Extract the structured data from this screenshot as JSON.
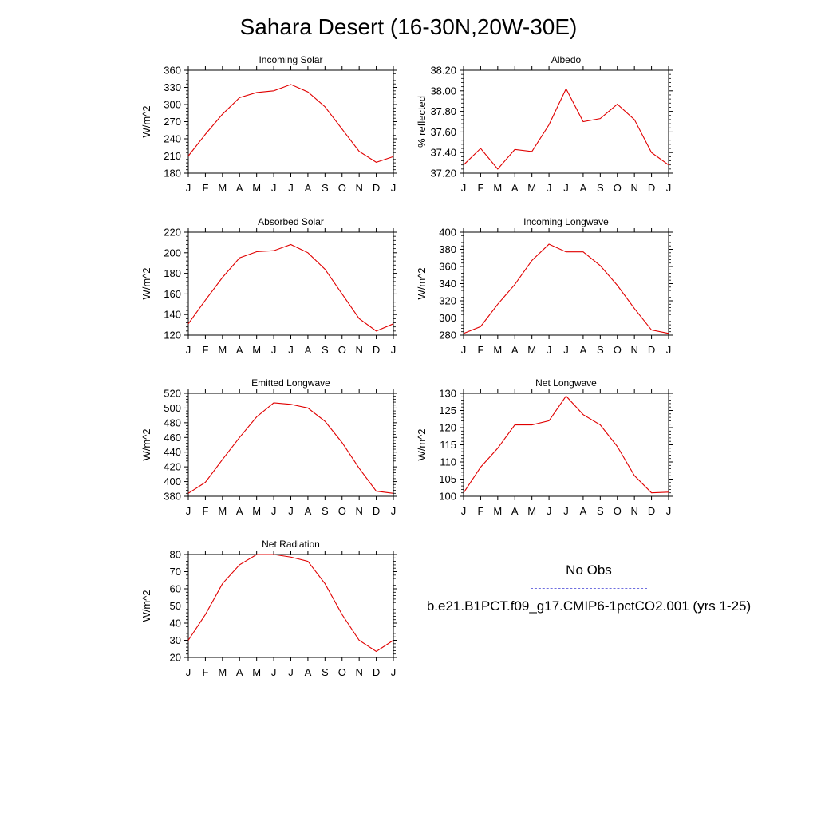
{
  "page": {
    "title": "Sahara Desert (16-30N,20W-30E)"
  },
  "legend": {
    "obs_label": "No Obs",
    "obs_color": "#6f6fe0",
    "model_label": "b.e21.B1PCT.f09_g17.CMIP6-1pctCO2.001 (yrs 1-25)",
    "model_color": "#e00000"
  },
  "chart_data": [
    {
      "type": "line",
      "title": "Incoming Solar",
      "xlabel": "",
      "ylabel": "W/m^2",
      "categories": [
        "J",
        "F",
        "M",
        "A",
        "M",
        "J",
        "J",
        "A",
        "S",
        "O",
        "N",
        "D",
        "J"
      ],
      "ylim": [
        180,
        360
      ],
      "yticks": [
        180,
        210,
        240,
        270,
        300,
        330,
        360
      ],
      "yformat": 0,
      "series": [
        {
          "values": [
            210,
            248,
            283,
            312,
            321,
            324,
            335,
            322,
            296,
            257,
            218,
            199,
            209
          ],
          "color": "#e00000"
        }
      ]
    },
    {
      "type": "line",
      "title": "Albedo",
      "xlabel": "",
      "ylabel": "% reflected",
      "categories": [
        "J",
        "F",
        "M",
        "A",
        "M",
        "J",
        "J",
        "A",
        "S",
        "O",
        "N",
        "D",
        "J"
      ],
      "ylim": [
        37.2,
        38.2
      ],
      "yticks": [
        37.2,
        37.4,
        37.6,
        37.8,
        38.0,
        38.2
      ],
      "yformat": 2,
      "series": [
        {
          "values": [
            37.28,
            37.44,
            37.24,
            37.43,
            37.41,
            37.67,
            38.02,
            37.7,
            37.73,
            37.87,
            37.72,
            37.4,
            37.28
          ],
          "color": "#e00000"
        }
      ]
    },
    {
      "type": "line",
      "title": "Absorbed Solar",
      "xlabel": "",
      "ylabel": "W/m^2",
      "categories": [
        "J",
        "F",
        "M",
        "A",
        "M",
        "J",
        "J",
        "A",
        "S",
        "O",
        "N",
        "D",
        "J"
      ],
      "ylim": [
        120,
        220
      ],
      "yticks": [
        120,
        140,
        160,
        180,
        200,
        220
      ],
      "yformat": 0,
      "series": [
        {
          "values": [
            131,
            154,
            176,
            195,
            201,
            202,
            208,
            200,
            184,
            160,
            136,
            124,
            131
          ],
          "color": "#e00000"
        }
      ]
    },
    {
      "type": "line",
      "title": "Incoming Longwave",
      "xlabel": "",
      "ylabel": "W/m^2",
      "categories": [
        "J",
        "F",
        "M",
        "A",
        "M",
        "J",
        "J",
        "A",
        "S",
        "O",
        "N",
        "D",
        "J"
      ],
      "ylim": [
        280,
        400
      ],
      "yticks": [
        280,
        300,
        320,
        340,
        360,
        380,
        400
      ],
      "yformat": 0,
      "series": [
        {
          "values": [
            282,
            290,
            316,
            339,
            367,
            386,
            377,
            377,
            361,
            338,
            311,
            286,
            282
          ],
          "color": "#e00000"
        }
      ]
    },
    {
      "type": "line",
      "title": "Emitted Longwave",
      "xlabel": "",
      "ylabel": "W/m^2",
      "categories": [
        "J",
        "F",
        "M",
        "A",
        "M",
        "J",
        "J",
        "A",
        "S",
        "O",
        "N",
        "D",
        "J"
      ],
      "ylim": [
        380,
        520
      ],
      "yticks": [
        380,
        400,
        420,
        440,
        460,
        480,
        500,
        520
      ],
      "yformat": 0,
      "series": [
        {
          "values": [
            384,
            399,
            430,
            460,
            488,
            507,
            505,
            500,
            482,
            453,
            418,
            387,
            384
          ],
          "color": "#e00000"
        }
      ]
    },
    {
      "type": "line",
      "title": "Net Longwave",
      "xlabel": "",
      "ylabel": "W/m^2",
      "categories": [
        "J",
        "F",
        "M",
        "A",
        "M",
        "J",
        "J",
        "A",
        "S",
        "O",
        "N",
        "D",
        "J"
      ],
      "ylim": [
        100,
        130
      ],
      "yticks": [
        100,
        105,
        110,
        115,
        120,
        125,
        130
      ],
      "yformat": 0,
      "series": [
        {
          "values": [
            101,
            108.5,
            114,
            120.8,
            120.8,
            122,
            129.2,
            123.8,
            120.8,
            114.5,
            106,
            101,
            101.2
          ],
          "color": "#e00000"
        }
      ]
    },
    {
      "type": "line",
      "title": "Net Radiation",
      "xlabel": "",
      "ylabel": "W/m^2",
      "categories": [
        "J",
        "F",
        "M",
        "A",
        "M",
        "J",
        "J",
        "A",
        "S",
        "O",
        "N",
        "D",
        "J"
      ],
      "ylim": [
        20,
        80
      ],
      "yticks": [
        20,
        30,
        40,
        50,
        60,
        70,
        80
      ],
      "yformat": 0,
      "series": [
        {
          "values": [
            30,
            45,
            63,
            74,
            80,
            80,
            78.5,
            76,
            63,
            45,
            30,
            23.5,
            30
          ],
          "color": "#e00000"
        }
      ]
    }
  ]
}
